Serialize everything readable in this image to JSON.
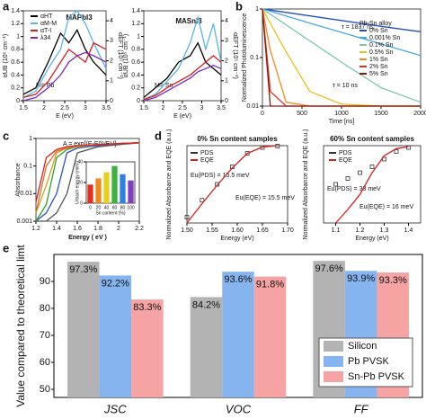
{
  "chart_data": [
    {
      "type": "line",
      "panel": "a",
      "title": "MAPbI3",
      "annotations": [
        "M= Pb"
      ],
      "y_label": "αUB (10⁵ cm⁻¹)",
      "y2_label": "αEFT (10⁵ cm⁻¹)",
      "x_label": "E (eV)",
      "x": [
        1.5,
        1.8,
        2.1,
        2.4,
        2.6,
        2.8,
        3.0,
        3.2,
        3.5
      ],
      "series": [
        {
          "name": "αHT",
          "color": "#000000",
          "values": [
            0.1,
            0.2,
            0.6,
            1.05,
            0.9,
            1.1,
            0.8,
            0.6,
            0.4
          ]
        },
        {
          "name": "αM-M",
          "color": "#5ab4e6",
          "values": [
            0.05,
            0.15,
            0.5,
            0.8,
            1.3,
            1.4,
            1.2,
            0.9,
            0.5
          ]
        },
        {
          "name": "αT-I",
          "color": "#d42020",
          "values": [
            0.05,
            0.1,
            0.3,
            0.6,
            0.8,
            0.7,
            0.6,
            0.9,
            0.8
          ]
        },
        {
          "name": "λ34",
          "color": "#7a2ab8",
          "values": [
            0.0,
            0.05,
            0.2,
            0.4,
            0.6,
            0.7,
            0.75,
            0.7,
            0.6
          ]
        }
      ],
      "xlim": [
        1.5,
        3.5
      ],
      "xticks": [
        1.5,
        2,
        2.5,
        3,
        3.5
      ],
      "ylim": [
        0,
        1.4
      ],
      "yticks": [
        0,
        0.2,
        0.4,
        0.6,
        0.8,
        1.0,
        1.2,
        1.4
      ],
      "y2lim": [
        0,
        4.5
      ],
      "y2ticks": [
        0,
        1,
        2,
        3,
        4
      ]
    },
    {
      "type": "line",
      "title": "MASnI3",
      "annotations": [
        "M= Sn"
      ],
      "y_label": "αUB (10⁵ cm⁻¹)",
      "y2_label": "αEFT (10⁵ cm⁻¹)",
      "x_label": "E (eV)",
      "x": [
        1.5,
        1.8,
        2.1,
        2.4,
        2.7,
        2.9,
        3.1,
        3.3,
        3.5
      ],
      "series": [
        {
          "color": "#000000",
          "values": [
            0.05,
            0.2,
            0.35,
            0.6,
            0.7,
            0.9,
            0.6,
            0.5,
            0.4
          ]
        },
        {
          "color": "#5ab4e6",
          "values": [
            0.02,
            0.1,
            0.3,
            0.5,
            0.9,
            1.3,
            0.8,
            1.2,
            0.6
          ]
        },
        {
          "color": "#d42020",
          "values": [
            0.02,
            0.08,
            0.2,
            0.3,
            0.4,
            0.5,
            0.6,
            0.7,
            0.6
          ]
        },
        {
          "color": "#7a2ab8",
          "values": [
            0.0,
            0.05,
            0.15,
            0.25,
            0.35,
            0.45,
            0.5,
            0.55,
            0.5
          ]
        }
      ],
      "xlim": [
        1.5,
        3.5
      ],
      "xticks": [
        1.5,
        2,
        2.5,
        3,
        3.5
      ],
      "ylim": [
        0,
        1.4
      ],
      "yticks": [
        0,
        0.2,
        0.4,
        0.6,
        0.8,
        1.0,
        1.2,
        1.4
      ],
      "y2lim": [
        0,
        4.5
      ],
      "y2ticks": [
        0,
        1,
        2,
        3,
        4
      ]
    },
    {
      "type": "line",
      "panel": "b",
      "log_y": true,
      "legend_title": "Pb-Sn alloy",
      "annotations": [
        "τ = 1837 ns",
        "τ = 10 ns"
      ],
      "y_label": "Normalized Photoluminescence",
      "x_label": "Time [ns]",
      "x": [
        0,
        100,
        300,
        600,
        1000,
        1500,
        2000
      ],
      "series": [
        {
          "name": "0% Sn",
          "color": "#1f4fbf",
          "values": [
            1,
            0.95,
            0.85,
            0.72,
            0.58,
            0.44,
            0.34
          ]
        },
        {
          "name": "0.001% Sn",
          "color": "#4aa8e0",
          "values": [
            1,
            0.9,
            0.72,
            0.51,
            0.33,
            0.19,
            0.11
          ]
        },
        {
          "name": "0.1% Sn",
          "color": "#7cc8a8",
          "values": [
            1,
            0.78,
            0.47,
            0.22,
            0.08,
            0.024,
            0.012
          ]
        },
        {
          "name": "0.5% Sn",
          "color": "#e8c020",
          "values": [
            1,
            0.51,
            0.13,
            0.02,
            0.011,
            0.01,
            0.01
          ]
        },
        {
          "name": "1% Sn",
          "color": "#f08a20",
          "values": [
            1,
            0.14,
            0.012,
            0.01,
            0.01,
            0.01,
            0.01
          ]
        },
        {
          "name": "2% Sn",
          "color": "#e03020",
          "values": [
            1,
            0.02,
            0.01,
            0.01,
            0.01,
            0.01,
            0.01
          ]
        },
        {
          "name": "5% Sn",
          "color": "#8a1a10",
          "values": [
            1,
            0.01,
            0.01,
            0.01,
            0.01,
            0.01,
            0.01
          ]
        }
      ],
      "xlim": [
        0,
        2000
      ],
      "xticks": [
        0,
        500,
        1000,
        1500,
        2000
      ],
      "ylim": [
        0.01,
        1
      ],
      "yticks": [
        0.01,
        0.1,
        1
      ]
    },
    {
      "type": "line",
      "panel": "c",
      "log_y": true,
      "annotations": [
        "A = exp[(E-E0)/EU]"
      ],
      "y_label": "Absorbance",
      "x_label": "Energy ( eV )",
      "x": [
        1.2,
        1.3,
        1.4,
        1.5,
        1.6,
        1.8,
        2.0,
        2.2
      ],
      "series": [
        {
          "color": "#555555",
          "values": [
            0.001,
            0.001,
            0.002,
            0.01,
            0.3,
            0.5,
            0.6,
            0.7
          ]
        },
        {
          "color": "#3050c0",
          "values": [
            0.001,
            0.002,
            0.01,
            0.3,
            0.45,
            0.55,
            0.65,
            0.7
          ]
        },
        {
          "color": "#2ca02c",
          "values": [
            0.001,
            0.004,
            0.2,
            0.4,
            0.5,
            0.6,
            0.65,
            0.7
          ]
        },
        {
          "color": "#d4a020",
          "values": [
            0.002,
            0.02,
            0.3,
            0.45,
            0.5,
            0.6,
            0.65,
            0.7
          ]
        },
        {
          "color": "#e07030",
          "values": [
            0.002,
            0.1,
            0.35,
            0.45,
            0.55,
            0.6,
            0.65,
            0.7
          ]
        },
        {
          "color": "#d42020",
          "values": [
            0.005,
            0.2,
            0.4,
            0.5,
            0.55,
            0.6,
            0.65,
            0.7
          ]
        }
      ],
      "xlim": [
        1.2,
        2.2
      ],
      "xticks": [
        1.2,
        1.4,
        1.6,
        1.8,
        2.0,
        2.2
      ],
      "ylim": [
        0.001,
        1
      ],
      "yticks": [
        0.001,
        0.01,
        0.1,
        1
      ]
    },
    {
      "type": "bar",
      "y_label": "Urbach energy (meV)",
      "x_label": "Sn content (%)",
      "categories": [
        "0",
        "20",
        "40",
        "60",
        "80",
        "100"
      ],
      "values": [
        18,
        24,
        30,
        36,
        28,
        22
      ],
      "colors": [
        "#e03020",
        "#f08a20",
        "#e8d020",
        "#40b040",
        "#3080e0",
        "#8040c0"
      ],
      "ylim": [
        0,
        40
      ],
      "yticks": [
        0,
        20,
        40
      ]
    },
    {
      "type": "line",
      "panel": "d",
      "log_y": true,
      "title": "0% Sn content samples",
      "annotations": [
        "Eu(PDS) = 15.5 meV",
        "Eu(EQE) = 15.5 meV"
      ],
      "y_label": "Normalized Absorbance and EQE (a.u.)",
      "x_label": "Energy (eV)",
      "x": [
        1.5,
        1.53,
        1.56,
        1.59,
        1.62,
        1.65,
        1.68
      ],
      "series": [
        {
          "name": "PDS",
          "color": "#333333",
          "marker": "square",
          "values": [
            0.0002,
            0.0015,
            0.01,
            0.08,
            0.4,
            0.8,
            0.95
          ]
        },
        {
          "name": "EQE",
          "color": "#d42020",
          "values": [
            0.0001,
            0.001,
            0.009,
            0.07,
            0.4,
            0.85,
            1
          ]
        }
      ],
      "xlim": [
        1.5,
        1.7
      ],
      "xticks": [
        {
          "value": 1.5,
          "label": "1.50"
        },
        1.55,
        {
          "value": 1.6,
          "label": "1.60"
        },
        1.65,
        {
          "value": 1.7,
          "label": "1.70"
        }
      ],
      "ylim": [
        0.0001,
        1
      ]
    },
    {
      "type": "line",
      "log_y": true,
      "title": "60% Sn content samples",
      "annotations": [
        "Eu(PDS) = 33 meV",
        "Eu(EQE) = 16 meV"
      ],
      "y_label": "Normalized Absorbance and EQE (a.u.)",
      "x_label": "Energy (eV)",
      "x": [
        1.1,
        1.15,
        1.2,
        1.25,
        1.3,
        1.35,
        1.4
      ],
      "series": [
        {
          "name": "PDS",
          "color": "#333333",
          "marker": "square",
          "values": [
            0.01,
            0.02,
            0.04,
            0.08,
            0.2,
            0.5,
            0.8
          ]
        },
        {
          "name": "EQE",
          "color": "#d42020",
          "values": [
            0.0001,
            0.0005,
            0.003,
            0.04,
            0.3,
            0.7,
            0.9
          ]
        }
      ],
      "xlim": [
        1.05,
        1.45
      ],
      "xticks": [
        1.1,
        1.2,
        1.3,
        1.4
      ],
      "ylim": [
        0.0001,
        1
      ]
    },
    {
      "type": "grouped_bar",
      "panel": "e",
      "y_label": "Value compared to theoretical limt",
      "categories": [
        "JSC",
        "VOC",
        "FF"
      ],
      "series": [
        {
          "name": "Silicon",
          "color": "#b3b3b3",
          "values": [
            97.3,
            84.2,
            97.6
          ],
          "value_labels": [
            "97.3%",
            "84.2%",
            "97.6%"
          ]
        },
        {
          "name": "Pb PVSK",
          "color": "#86b4ef",
          "values": [
            92.2,
            93.6,
            93.9
          ],
          "value_labels": [
            "92.2%",
            "93.6%",
            "93.9%"
          ]
        },
        {
          "name": "Sn-Pb PVSK",
          "color": "#f5a3a3",
          "values": [
            83.3,
            91.8,
            93.3
          ],
          "value_labels": [
            "83.3%",
            "91.8%",
            "93.3%"
          ]
        }
      ],
      "ylim": [
        47,
        100
      ],
      "yticks": [
        50,
        60,
        70,
        80,
        90
      ],
      "legend": "lower right"
    }
  ]
}
